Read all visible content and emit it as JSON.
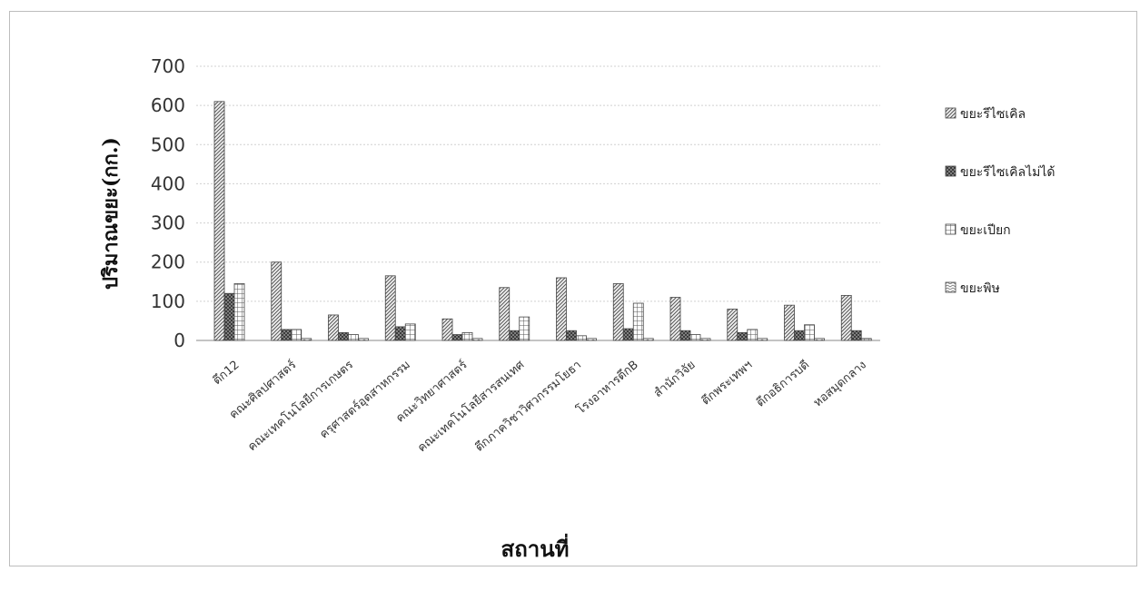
{
  "chart_data": {
    "type": "bar",
    "title": "",
    "xlabel": "สถานที่",
    "ylabel": "ปริมาณขยะ(กก.)",
    "ylim": [
      0,
      700
    ],
    "yticks": [
      0,
      100,
      200,
      300,
      400,
      500,
      600,
      700
    ],
    "grid": true,
    "legend_position": "right",
    "categories": [
      "ตึก12",
      "คณะศิลปศาสตร์",
      "คณะเทคโนโลยีการเกษตร",
      "ครุศาสตร์อุตสาหกรรม",
      "คณะวิทยาศาสตร์",
      "คณะเทคโนโลยีสารสนเทศ",
      "ตึกภาควิชาวิศวกรรมโยธา",
      "โรงอาหารตึกB",
      "สำนักวิจัย",
      "ตึกพระเทพฯ",
      "ตึกอธิการบดี",
      "หอสมุดกลาง"
    ],
    "series": [
      {
        "name": "ขยะรีไซเคิล",
        "pattern": "diagonal",
        "values": [
          610,
          200,
          65,
          165,
          55,
          135,
          160,
          145,
          110,
          80,
          90,
          115
        ]
      },
      {
        "name": "ขยะรีไซเคิลไม่ได้",
        "pattern": "crosshatch",
        "values": [
          120,
          28,
          20,
          35,
          15,
          25,
          25,
          30,
          25,
          20,
          25,
          25
        ]
      },
      {
        "name": "ขยะเปียก",
        "pattern": "grid",
        "values": [
          145,
          28,
          15,
          42,
          20,
          60,
          12,
          95,
          15,
          28,
          40,
          5
        ]
      },
      {
        "name": "ขยะพิษ",
        "pattern": "wave",
        "values": [
          0,
          5,
          5,
          0,
          5,
          0,
          5,
          5,
          5,
          5,
          5,
          0
        ]
      }
    ]
  }
}
